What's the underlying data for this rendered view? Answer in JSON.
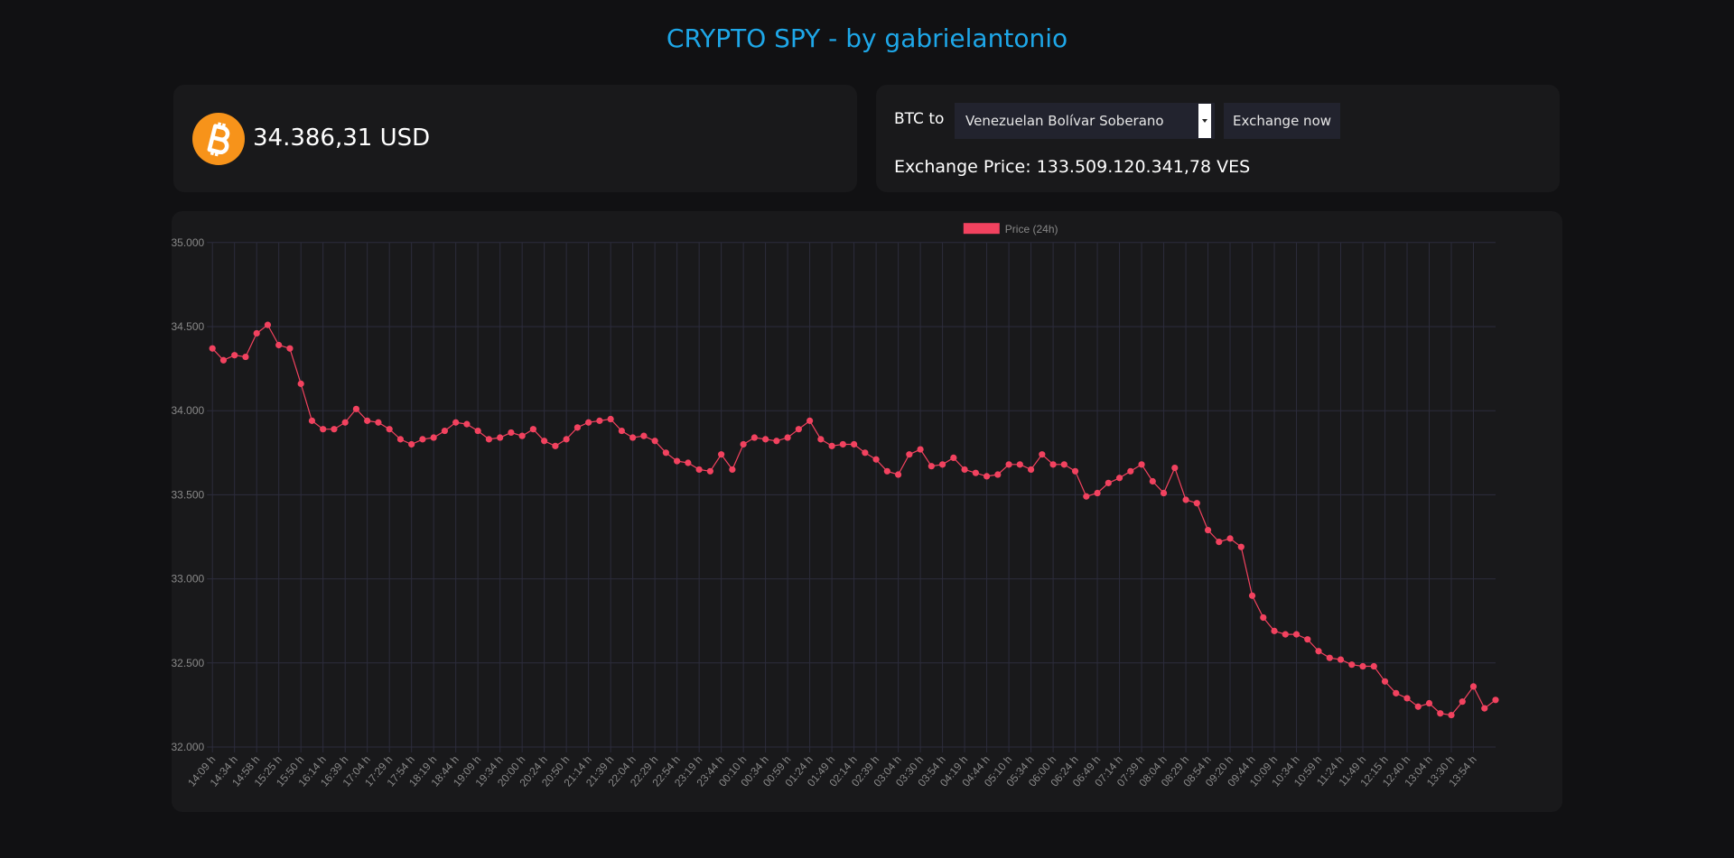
{
  "header": {
    "title": "CRYPTO SPY - by gabrielantonio"
  },
  "price_card": {
    "price": "34.386,31 USD"
  },
  "exchange": {
    "label": "BTC to",
    "currency": "Venezuelan Bolívar Soberano",
    "button": "Exchange now",
    "result": "Exchange Price: 133.509.120.341,78 VES"
  },
  "chart_data": {
    "type": "line",
    "legend": "top",
    "grid": true,
    "ylim": [
      32000,
      35000
    ],
    "yticks": [
      {
        "value": 32000,
        "label": "32.000"
      },
      {
        "value": 32500,
        "label": "32.500"
      },
      {
        "value": 33000,
        "label": "33.000"
      },
      {
        "value": 33500,
        "label": "33.500"
      },
      {
        "value": 34000,
        "label": "34.000"
      },
      {
        "value": 34500,
        "label": "34.500"
      },
      {
        "value": 35000,
        "label": "35.000"
      }
    ],
    "categories": [
      "14:09 h",
      null,
      "14:34 h",
      null,
      "14:58 h",
      null,
      "15:25 h",
      null,
      "15:50 h",
      null,
      "16:14 h",
      null,
      "16:39 h",
      null,
      "17:04 h",
      null,
      "17:29 h",
      null,
      "17:54 h",
      null,
      "18:19 h",
      null,
      "18:44 h",
      null,
      "19:09 h",
      null,
      "19:34 h",
      null,
      "20:00 h",
      null,
      "20:24 h",
      null,
      "20:50 h",
      null,
      "21:14 h",
      null,
      "21:39 h",
      null,
      "22:04 h",
      null,
      "22:29 h",
      null,
      "22:54 h",
      null,
      "23:19 h",
      null,
      "23:44 h",
      null,
      "00:10 h",
      null,
      "00:34 h",
      null,
      "00:59 h",
      null,
      "01:24 h",
      null,
      "01:49 h",
      null,
      "02:14 h",
      null,
      "02:39 h",
      null,
      "03:04 h",
      null,
      "03:30 h",
      null,
      "03:54 h",
      null,
      "04:19 h",
      null,
      "04:44 h",
      null,
      "05:10 h",
      null,
      "05:34 h",
      null,
      "06:00 h",
      null,
      "06:24 h",
      null,
      "06:49 h",
      null,
      "07:14 h",
      null,
      "07:39 h",
      null,
      "08:04 h",
      null,
      "08:29 h",
      null,
      "08:54 h",
      null,
      "09:20 h",
      null,
      "09:44 h",
      null,
      "10:09 h",
      null,
      "10:34 h",
      null,
      "10:59 h",
      null,
      "11:24 h",
      null,
      "11:49 h",
      null,
      "12:15 h",
      null,
      "12:40 h",
      null,
      "13:04 h",
      null,
      "13:30 h",
      null,
      "13:54 h",
      null,
      null
    ],
    "series": [
      {
        "name": "Price (24h)",
        "color": "#f2425f",
        "values": [
          34370,
          34300,
          34330,
          34320,
          34460,
          34510,
          34390,
          34370,
          34160,
          33940,
          33890,
          33890,
          33930,
          34010,
          33940,
          33930,
          33890,
          33830,
          33800,
          33830,
          33840,
          33880,
          33930,
          33920,
          33880,
          33830,
          33840,
          33870,
          33850,
          33890,
          33820,
          33790,
          33830,
          33900,
          33930,
          33940,
          33950,
          33880,
          33840,
          33850,
          33820,
          33750,
          33700,
          33690,
          33650,
          33640,
          33740,
          33650,
          33800,
          33840,
          33830,
          33820,
          33840,
          33890,
          33940,
          33830,
          33790,
          33800,
          33800,
          33750,
          33710,
          33640,
          33620,
          33740,
          33770,
          33670,
          33680,
          33720,
          33650,
          33630,
          33610,
          33620,
          33680,
          33680,
          33650,
          33740,
          33680,
          33680,
          33640,
          33490,
          33510,
          33570,
          33600,
          33640,
          33680,
          33580,
          33510,
          33660,
          33470,
          33450,
          33290,
          33220,
          33240,
          33190,
          32900,
          32770,
          32690,
          32670,
          32670,
          32640,
          32570,
          32530,
          32520,
          32490,
          32480,
          32480,
          32390,
          32320,
          32290,
          32240,
          32260,
          32200,
          32190,
          32270,
          32360,
          32230,
          32280
        ]
      }
    ]
  }
}
